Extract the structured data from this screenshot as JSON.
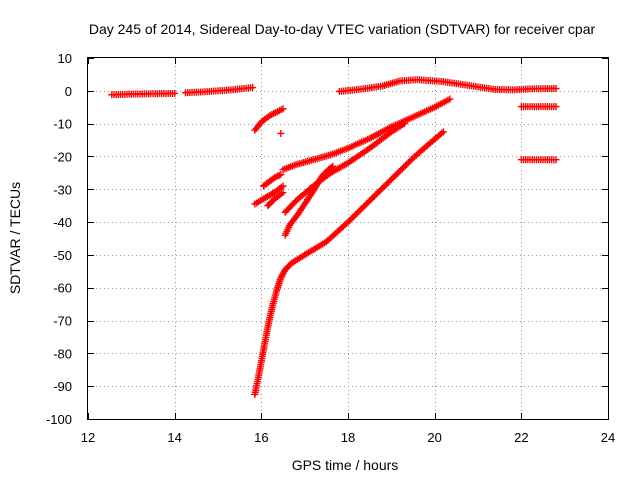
{
  "chart_data": {
    "type": "scatter",
    "title": "Day 245 of 2014, Sidereal Day-to-day VTEC variation (SDTVAR) for receiver cpar",
    "xlabel": "GPS time / hours",
    "ylabel": "SDTVAR / TECUs",
    "xlim": [
      12,
      24
    ],
    "ylim": [
      -100,
      10
    ],
    "xticks": [
      12,
      14,
      16,
      18,
      20,
      22,
      24
    ],
    "yticks": [
      10,
      0,
      -10,
      -20,
      -30,
      -40,
      -50,
      -60,
      -70,
      -80,
      -90,
      -100
    ],
    "grid": true,
    "marker": "+",
    "color": "#ff0000",
    "segments": [
      {
        "points": [
          [
            12.55,
            -1.2
          ],
          [
            13.0,
            -1.0
          ],
          [
            13.5,
            -0.9
          ],
          [
            14.0,
            -0.8
          ]
        ]
      },
      {
        "points": [
          [
            14.25,
            -0.6
          ],
          [
            14.8,
            -0.2
          ],
          [
            15.3,
            0.3
          ],
          [
            15.8,
            1.0
          ]
        ]
      },
      {
        "points": [
          [
            17.8,
            -0.2
          ],
          [
            18.3,
            0.5
          ],
          [
            18.8,
            1.5
          ],
          [
            19.2,
            3.0
          ],
          [
            19.6,
            3.4
          ],
          [
            20.2,
            2.8
          ],
          [
            20.8,
            1.6
          ],
          [
            21.4,
            0.4
          ],
          [
            21.8,
            0.3
          ],
          [
            22.2,
            0.6
          ],
          [
            22.8,
            0.7
          ]
        ]
      },
      {
        "points": [
          [
            22.0,
            -4.8
          ],
          [
            22.8,
            -4.8
          ]
        ]
      },
      {
        "points": [
          [
            22.0,
            -21.0
          ],
          [
            22.8,
            -21.0
          ]
        ]
      },
      {
        "points": [
          [
            15.85,
            -12.0
          ],
          [
            16.0,
            -9.5
          ],
          [
            16.2,
            -7.5
          ],
          [
            16.5,
            -5.5
          ]
        ]
      },
      {
        "points": [
          [
            16.45,
            -13.0
          ]
        ]
      },
      {
        "points": [
          [
            16.05,
            -29.0
          ],
          [
            16.3,
            -26.5
          ],
          [
            16.45,
            -25.5
          ]
        ]
      },
      {
        "points": [
          [
            15.85,
            -34.5
          ],
          [
            16.1,
            -32.5
          ],
          [
            16.3,
            -31.0
          ],
          [
            16.5,
            -29.0
          ]
        ]
      },
      {
        "points": [
          [
            16.15,
            -35.0
          ],
          [
            16.3,
            -33.0
          ],
          [
            16.5,
            -31.0
          ]
        ]
      },
      {
        "points": [
          [
            16.5,
            -24.0
          ],
          [
            16.8,
            -22.5
          ],
          [
            17.2,
            -21.0
          ],
          [
            17.6,
            -19.5
          ],
          [
            18.0,
            -17.5
          ],
          [
            18.5,
            -14.5
          ],
          [
            19.0,
            -11.0
          ],
          [
            19.5,
            -8.0
          ],
          [
            20.0,
            -5.0
          ],
          [
            20.35,
            -2.5
          ]
        ]
      },
      {
        "points": [
          [
            16.55,
            -37.0
          ],
          [
            16.8,
            -33.5
          ],
          [
            17.2,
            -29.0
          ],
          [
            17.6,
            -25.0
          ],
          [
            18.0,
            -22.0
          ],
          [
            18.5,
            -17.5
          ],
          [
            19.0,
            -12.5
          ],
          [
            19.3,
            -10.0
          ]
        ]
      },
      {
        "points": [
          [
            16.55,
            -44.0
          ],
          [
            16.65,
            -41.0
          ],
          [
            16.85,
            -37.5
          ],
          [
            17.2,
            -30.5
          ],
          [
            17.4,
            -26.0
          ],
          [
            17.55,
            -24.0
          ],
          [
            17.65,
            -23.0
          ]
        ]
      },
      {
        "points": [
          [
            15.85,
            -92.5
          ],
          [
            15.95,
            -86.0
          ],
          [
            16.05,
            -79.0
          ],
          [
            16.15,
            -72.0
          ],
          [
            16.25,
            -66.0
          ],
          [
            16.35,
            -61.0
          ],
          [
            16.45,
            -57.0
          ],
          [
            16.55,
            -54.5
          ],
          [
            16.7,
            -52.5
          ],
          [
            17.0,
            -50.0
          ],
          [
            17.5,
            -46.0
          ],
          [
            18.0,
            -40.0
          ],
          [
            18.5,
            -33.5
          ],
          [
            19.0,
            -27.0
          ],
          [
            19.5,
            -20.5
          ],
          [
            19.8,
            -17.0
          ],
          [
            20.2,
            -12.5
          ]
        ]
      }
    ]
  }
}
